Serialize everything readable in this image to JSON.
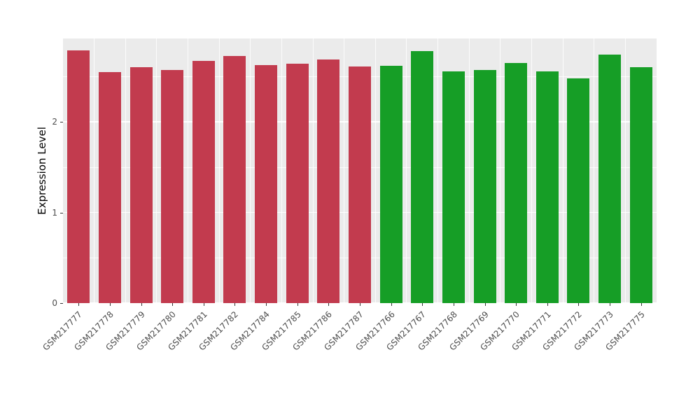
{
  "chart_data": {
    "type": "bar",
    "title": "",
    "xlabel": "",
    "ylabel": "Expression Level",
    "categories": [
      "GSM217777",
      "GSM217778",
      "GSM217779",
      "GSM217780",
      "GSM217781",
      "GSM217782",
      "GSM217784",
      "GSM217785",
      "GSM217786",
      "GSM217787",
      "GSM217766",
      "GSM217767",
      "GSM217768",
      "GSM217769",
      "GSM217770",
      "GSM217771",
      "GSM217772",
      "GSM217773",
      "GSM217775"
    ],
    "values": [
      2.79,
      2.55,
      2.6,
      2.57,
      2.67,
      2.73,
      2.63,
      2.64,
      2.69,
      2.61,
      2.62,
      2.78,
      2.56,
      2.57,
      2.65,
      2.56,
      2.48,
      2.74,
      2.6
    ],
    "bar_groups": [
      "red",
      "red",
      "red",
      "red",
      "red",
      "red",
      "red",
      "red",
      "red",
      "red",
      "green",
      "green",
      "green",
      "green",
      "green",
      "green",
      "green",
      "green",
      "green"
    ],
    "group_colors": {
      "red": "#C23B4E",
      "green": "#169E26"
    },
    "yticks": [
      "0",
      "1",
      "2"
    ],
    "ytick_values": [
      0,
      1,
      2
    ],
    "ytick_minor_values": [
      0.5,
      1.5,
      2.5
    ],
    "ylim": [
      0,
      2.92
    ],
    "grid": true,
    "legend": "none",
    "panel_bg": "#EBEBEB",
    "grid_color": "#FFFFFF",
    "axis_text_color": "#4D4D4D",
    "tick_color": "#333333"
  }
}
